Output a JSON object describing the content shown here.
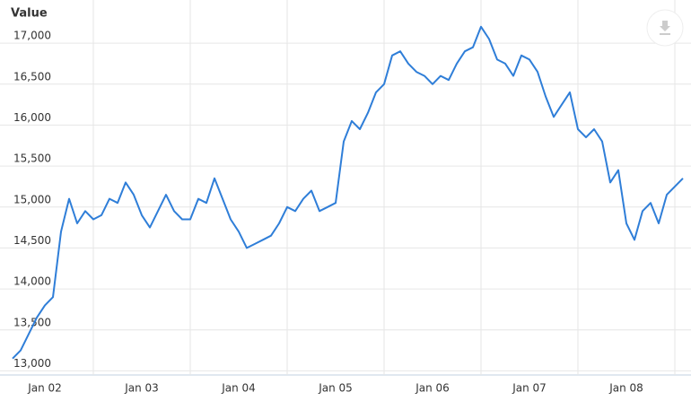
{
  "chart_data": {
    "type": "line",
    "y_axis_label": "Value",
    "x": [
      "2001-09",
      "2001-10",
      "2001-11",
      "2001-12",
      "2002-01",
      "2002-02",
      "2002-03",
      "2002-04",
      "2002-05",
      "2002-06",
      "2002-07",
      "2002-08",
      "2002-09",
      "2002-10",
      "2002-11",
      "2002-12",
      "2003-01",
      "2003-02",
      "2003-03",
      "2003-04",
      "2003-05",
      "2003-06",
      "2003-07",
      "2003-08",
      "2003-09",
      "2003-10",
      "2003-11",
      "2003-12",
      "2004-01",
      "2004-02",
      "2004-03",
      "2004-04",
      "2004-05",
      "2004-06",
      "2004-07",
      "2004-08",
      "2004-09",
      "2004-10",
      "2004-11",
      "2004-12",
      "2005-01",
      "2005-02",
      "2005-03",
      "2005-04",
      "2005-05",
      "2005-06",
      "2005-07",
      "2005-08",
      "2005-09",
      "2005-10",
      "2005-11",
      "2005-12",
      "2006-01",
      "2006-02",
      "2006-03",
      "2006-04",
      "2006-05",
      "2006-06",
      "2006-07",
      "2006-08",
      "2006-09",
      "2006-10",
      "2006-11",
      "2006-12",
      "2007-01",
      "2007-02",
      "2007-03",
      "2007-04",
      "2007-05",
      "2007-06",
      "2007-07",
      "2007-08",
      "2007-09",
      "2007-10",
      "2007-11",
      "2007-12",
      "2008-01",
      "2008-02",
      "2008-03",
      "2008-04",
      "2008-05",
      "2008-06",
      "2008-07",
      "2008-08"
    ],
    "series": [
      {
        "name": "Value",
        "color": "#2f7ed8",
        "values": [
          13150,
          13250,
          13450,
          13650,
          13800,
          13900,
          14700,
          15100,
          14800,
          14950,
          14850,
          14900,
          15100,
          15050,
          15300,
          15150,
          14900,
          14750,
          14950,
          15150,
          14950,
          14850,
          14850,
          15100,
          15050,
          15350,
          15100,
          14850,
          14700,
          14500,
          14550,
          14600,
          14650,
          14800,
          15000,
          14950,
          15100,
          15200,
          14950,
          15000,
          15050,
          15800,
          16050,
          15950,
          16150,
          16400,
          16500,
          16850,
          16900,
          16750,
          16650,
          16600,
          16500,
          16600,
          16550,
          16750,
          16900,
          16950,
          17200,
          17050,
          16800,
          16750,
          16600,
          16850,
          16800,
          16650,
          16350,
          16100,
          16250,
          16400,
          15950,
          15850,
          15950,
          15800,
          15300,
          15450,
          14800,
          14600,
          14950,
          15050,
          14800,
          15150,
          15250,
          15350
        ]
      }
    ],
    "xlim": [
      "2001-08",
      "2008-09"
    ],
    "xticks": [
      {
        "value": "2002-01",
        "label": "Jan 02"
      },
      {
        "value": "2003-01",
        "label": "Jan 03"
      },
      {
        "value": "2004-01",
        "label": "Jan 04"
      },
      {
        "value": "2005-01",
        "label": "Jan 05"
      },
      {
        "value": "2006-01",
        "label": "Jan 06"
      },
      {
        "value": "2007-01",
        "label": "Jan 07"
      },
      {
        "value": "2008-01",
        "label": "Jan 08"
      }
    ],
    "ylim": [
      12950,
      17220
    ],
    "yticks": [
      {
        "value": 13000,
        "label": "13,000"
      },
      {
        "value": 13500,
        "label": "13,500"
      },
      {
        "value": 14000,
        "label": "14,000"
      },
      {
        "value": 14500,
        "label": "14,500"
      },
      {
        "value": 15000,
        "label": "15,000"
      },
      {
        "value": 15500,
        "label": "15,500"
      },
      {
        "value": 16000,
        "label": "16,000"
      },
      {
        "value": 16500,
        "label": "16,500"
      },
      {
        "value": 17000,
        "label": "17,000"
      }
    ],
    "grid": true
  }
}
